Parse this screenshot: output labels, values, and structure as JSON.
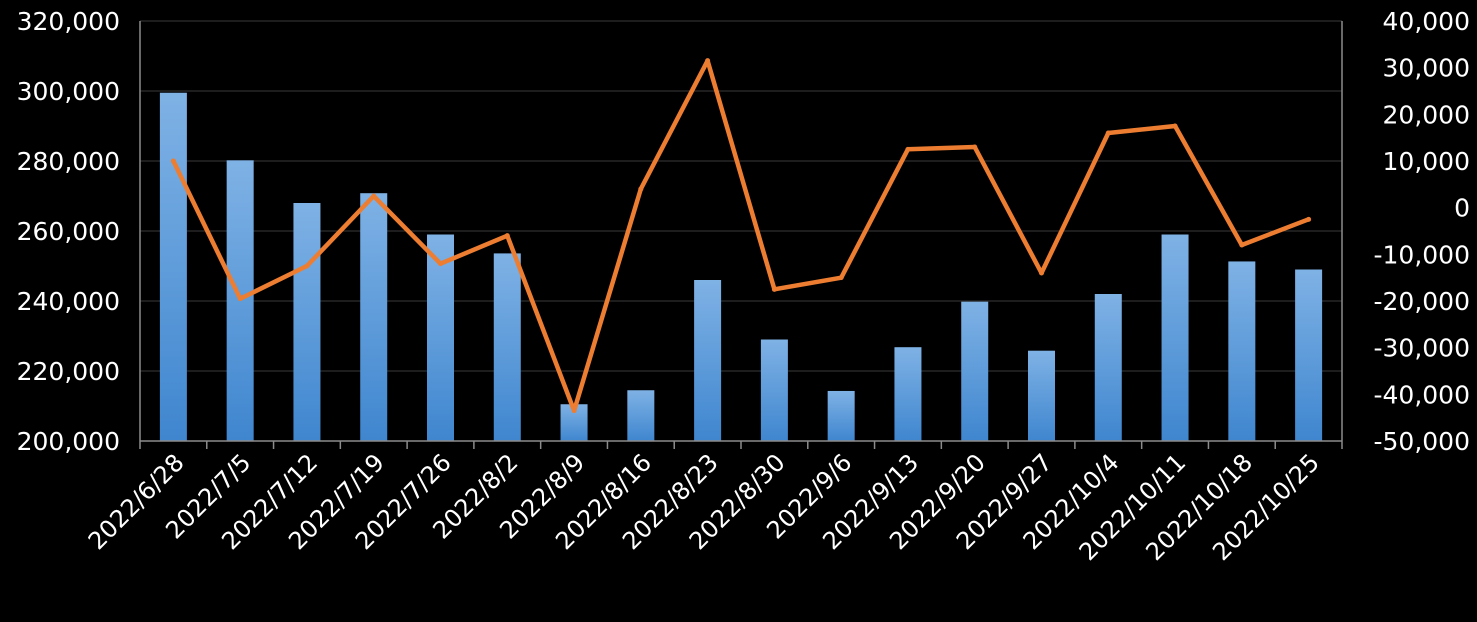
{
  "chart_data": {
    "type": "bar",
    "categories": [
      "2022/6/28",
      "2022/7/5",
      "2022/7/12",
      "2022/7/19",
      "2022/7/26",
      "2022/8/2",
      "2022/8/9",
      "2022/8/16",
      "2022/8/23",
      "2022/8/30",
      "2022/9/6",
      "2022/9/13",
      "2022/9/20",
      "2022/9/27",
      "2022/10/4",
      "2022/10/11",
      "2022/10/18",
      "2022/10/25"
    ],
    "series": [
      {
        "type": "bar",
        "axis": "left",
        "values": [
          299500,
          280200,
          268000,
          270800,
          259000,
          253600,
          210500,
          214500,
          246000,
          229000,
          214300,
          226800,
          239800,
          225800,
          242000,
          259000,
          251300,
          249000
        ]
      },
      {
        "type": "line",
        "axis": "right",
        "values": [
          10000,
          -19500,
          -12500,
          2500,
          -12000,
          -6000,
          -43500,
          4000,
          31500,
          -17500,
          -15000,
          12500,
          13000,
          -14000,
          16000,
          17500,
          -8000,
          -2500
        ]
      }
    ],
    "y_left": {
      "min": 200000,
      "max": 320000,
      "step": 20000,
      "tick_labels": [
        "200,000",
        "220,000",
        "240,000",
        "260,000",
        "280,000",
        "300,000",
        "320,000"
      ]
    },
    "y_right": {
      "min": -50000,
      "max": 40000,
      "step": 10000,
      "tick_labels": [
        "-50,000",
        "-40,000",
        "-30,000",
        "-20,000",
        "-10,000",
        "0",
        "10,000",
        "20,000",
        "30,000",
        "40,000"
      ]
    },
    "grid": true,
    "legend": "none",
    "colors": {
      "bar_top": "#7fb2e5",
      "bar_bottom": "#3f86cf",
      "line": "#ed7d31",
      "grid": "#3a3a3a",
      "axis": "#8c8c8c",
      "text": "#ffffff",
      "background": "#000000"
    }
  }
}
